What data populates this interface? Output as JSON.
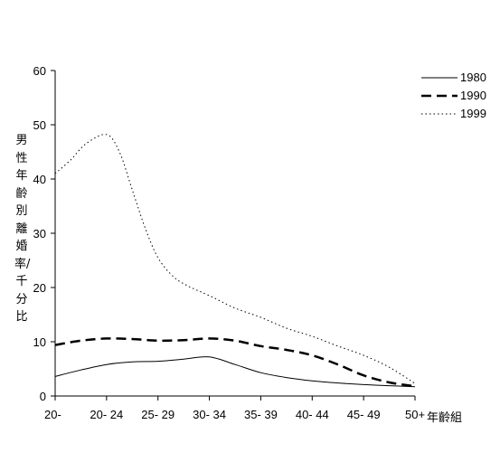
{
  "chart_data": {
    "type": "line",
    "title": "",
    "ylabel": "男性年齡別離婚率/千分比",
    "xlabel": "年齡組",
    "categories": [
      "20-",
      "20- 24",
      "25- 29",
      "30- 34",
      "35- 39",
      "40- 44",
      "45- 49",
      "50+"
    ],
    "ylim": [
      0,
      60
    ],
    "yticks": [
      0,
      10,
      20,
      30,
      40,
      50,
      60
    ],
    "grid": false,
    "legend_position": "top-right",
    "series": [
      {
        "name": "1980",
        "style": "solid",
        "points": [
          [
            0,
            3.6
          ],
          [
            0.5,
            4.8
          ],
          [
            1,
            5.8
          ],
          [
            1.5,
            6.3
          ],
          [
            2,
            6.4
          ],
          [
            2.5,
            6.8
          ],
          [
            3,
            7.2
          ],
          [
            3.5,
            5.8
          ],
          [
            4,
            4.3
          ],
          [
            4.5,
            3.4
          ],
          [
            5,
            2.8
          ],
          [
            5.5,
            2.4
          ],
          [
            6,
            2.1
          ],
          [
            6.5,
            1.9
          ],
          [
            7,
            1.7
          ]
        ]
      },
      {
        "name": "1990",
        "style": "dashed",
        "points": [
          [
            0,
            9.4
          ],
          [
            0.5,
            10.2
          ],
          [
            1,
            10.6
          ],
          [
            1.5,
            10.5
          ],
          [
            2,
            10.2
          ],
          [
            2.5,
            10.3
          ],
          [
            3,
            10.6
          ],
          [
            3.5,
            10.2
          ],
          [
            4,
            9.2
          ],
          [
            4.5,
            8.5
          ],
          [
            5,
            7.5
          ],
          [
            5.5,
            5.8
          ],
          [
            6,
            3.8
          ],
          [
            6.5,
            2.5
          ],
          [
            7,
            1.8
          ]
        ]
      },
      {
        "name": "1999",
        "style": "dotted",
        "points": [
          [
            0,
            41
          ],
          [
            0.3,
            43.5
          ],
          [
            0.6,
            46.5
          ],
          [
            1,
            48.2
          ],
          [
            1.25,
            45
          ],
          [
            1.5,
            38
          ],
          [
            1.75,
            31
          ],
          [
            2,
            25.5
          ],
          [
            2.3,
            22
          ],
          [
            2.6,
            20.2
          ],
          [
            3,
            18.5
          ],
          [
            3.5,
            16.2
          ],
          [
            4,
            14.5
          ],
          [
            4.5,
            12.5
          ],
          [
            5,
            11
          ],
          [
            5.5,
            9.2
          ],
          [
            6,
            7.5
          ],
          [
            6.5,
            5.3
          ],
          [
            7,
            2.3
          ]
        ]
      }
    ],
    "colors": {
      "line": "#000000",
      "axis": "#000000",
      "background": "#ffffff"
    }
  }
}
